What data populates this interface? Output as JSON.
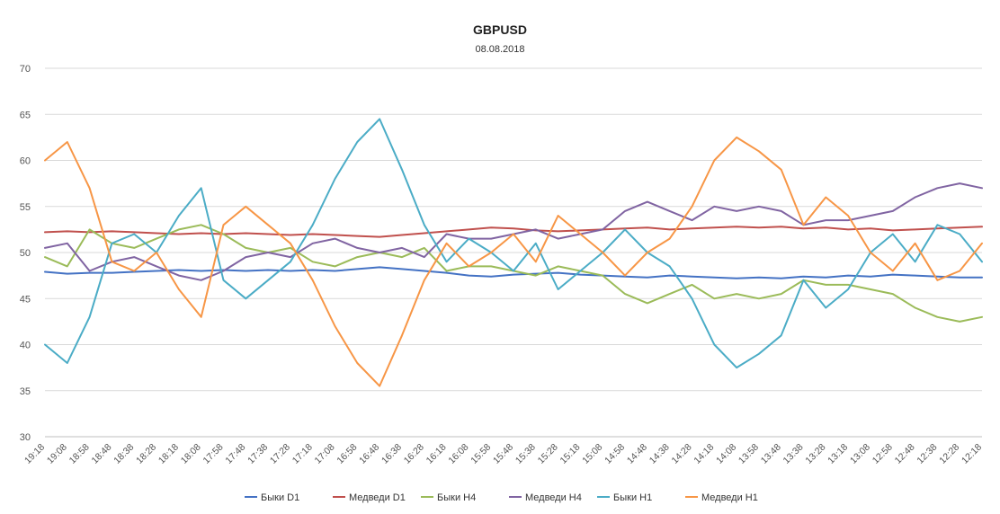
{
  "chart_data": {
    "type": "line",
    "title": "GBPUSD",
    "subtitle": "08.08.2018",
    "ylim": [
      30,
      70
    ],
    "yticks": [
      30,
      35,
      40,
      45,
      50,
      55,
      60,
      65,
      70
    ],
    "grid": "horizontal",
    "legend_position": "bottom",
    "x": [
      "19:18",
      "19:08",
      "18:58",
      "18:48",
      "18:38",
      "18:28",
      "18:18",
      "18:08",
      "17:58",
      "17:48",
      "17:38",
      "17:28",
      "17:18",
      "17:08",
      "16:58",
      "16:48",
      "16:38",
      "16:28",
      "16:18",
      "16:08",
      "15:58",
      "15:48",
      "15:38",
      "15:28",
      "15:18",
      "15:08",
      "14:58",
      "14:48",
      "14:38",
      "14:28",
      "14:18",
      "14:08",
      "13:58",
      "13:48",
      "13:38",
      "13:28",
      "13:18",
      "13:08",
      "12:58",
      "12:48",
      "12:38",
      "12:28",
      "12:18"
    ],
    "series": [
      {
        "name": "Быки D1",
        "color": "#4472c4",
        "values": [
          47.9,
          47.7,
          47.8,
          47.8,
          47.9,
          48.0,
          48.1,
          48.0,
          48.1,
          48.0,
          48.1,
          48.0,
          48.1,
          48.0,
          48.2,
          48.4,
          48.2,
          48.0,
          47.8,
          47.5,
          47.4,
          47.6,
          47.7,
          47.8,
          47.6,
          47.5,
          47.4,
          47.3,
          47.5,
          47.4,
          47.3,
          47.2,
          47.3,
          47.2,
          47.4,
          47.3,
          47.5,
          47.4,
          47.6,
          47.5,
          47.4,
          47.3,
          47.3
        ]
      },
      {
        "name": "Медведи D1",
        "color": "#c0504d",
        "values": [
          52.2,
          52.3,
          52.2,
          52.3,
          52.2,
          52.1,
          52.0,
          52.1,
          52.0,
          52.1,
          52.0,
          51.9,
          52.0,
          51.9,
          51.8,
          51.7,
          51.9,
          52.1,
          52.3,
          52.5,
          52.7,
          52.6,
          52.4,
          52.3,
          52.4,
          52.5,
          52.6,
          52.7,
          52.5,
          52.6,
          52.7,
          52.8,
          52.7,
          52.8,
          52.6,
          52.7,
          52.5,
          52.6,
          52.4,
          52.5,
          52.6,
          52.7,
          52.8
        ]
      },
      {
        "name": "Быки H4",
        "color": "#9bbb59",
        "values": [
          49.5,
          48.5,
          52.5,
          51.0,
          50.5,
          51.5,
          52.5,
          53.0,
          52.0,
          50.5,
          50.0,
          50.5,
          49.0,
          48.5,
          49.5,
          50.0,
          49.5,
          50.5,
          48.0,
          48.5,
          48.5,
          48.0,
          47.5,
          48.5,
          48.0,
          47.5,
          45.5,
          44.5,
          45.5,
          46.5,
          45.0,
          45.5,
          45.0,
          45.5,
          47.0,
          46.5,
          46.5,
          46.0,
          45.5,
          44.0,
          43.0,
          42.5,
          43.0
        ]
      },
      {
        "name": "Медведи H4",
        "color": "#8064a2",
        "values": [
          50.5,
          51.0,
          48.0,
          49.0,
          49.5,
          48.5,
          47.5,
          47.0,
          48.0,
          49.5,
          50.0,
          49.5,
          51.0,
          51.5,
          50.5,
          50.0,
          50.5,
          49.5,
          52.0,
          51.5,
          51.5,
          52.0,
          52.5,
          51.5,
          52.0,
          52.5,
          54.5,
          55.5,
          54.5,
          53.5,
          55.0,
          54.5,
          55.0,
          54.5,
          53.0,
          53.5,
          53.5,
          54.0,
          54.5,
          56.0,
          57.0,
          57.5,
          57.0
        ]
      },
      {
        "name": "Быки H1",
        "color": "#4bacc6",
        "values": [
          40.0,
          38.0,
          43.0,
          51.0,
          52.0,
          50.0,
          54.0,
          57.0,
          47.0,
          45.0,
          47.0,
          49.0,
          53.0,
          58.0,
          62.0,
          64.5,
          59.0,
          53.0,
          49.0,
          51.5,
          50.0,
          48.0,
          51.0,
          46.0,
          48.0,
          50.0,
          52.5,
          50.0,
          48.5,
          45.0,
          40.0,
          37.5,
          39.0,
          41.0,
          47.0,
          44.0,
          46.0,
          50.0,
          52.0,
          49.0,
          53.0,
          52.0,
          49.0
        ]
      },
      {
        "name": "Медведи H1",
        "color": "#f79646",
        "values": [
          60.0,
          62.0,
          57.0,
          49.0,
          48.0,
          50.0,
          46.0,
          43.0,
          53.0,
          55.0,
          53.0,
          51.0,
          47.0,
          42.0,
          38.0,
          35.5,
          41.0,
          47.0,
          51.0,
          48.5,
          50.0,
          52.0,
          49.0,
          54.0,
          52.0,
          50.0,
          47.5,
          50.0,
          51.5,
          55.0,
          60.0,
          62.5,
          61.0,
          59.0,
          53.0,
          56.0,
          54.0,
          50.0,
          48.0,
          51.0,
          47.0,
          48.0,
          51.0
        ]
      }
    ]
  }
}
